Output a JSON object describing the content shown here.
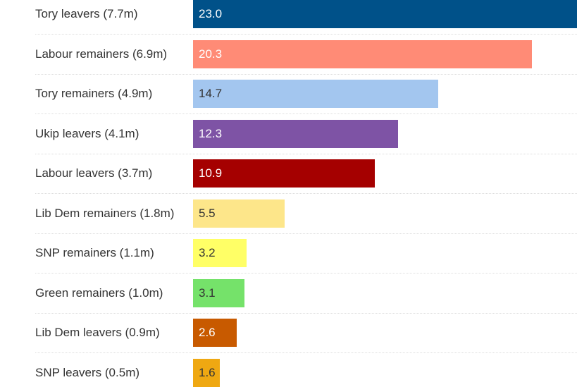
{
  "chart_data": {
    "type": "bar",
    "orientation": "horizontal",
    "categories": [
      "Tory leavers (7.7m)",
      "Labour remainers (6.9m)",
      "Tory remainers (4.9m)",
      "Ukip leavers (4.1m)",
      "Labour leavers (3.7m)",
      "Lib Dem remainers (1.8m)",
      "SNP remainers (1.1m)",
      "Green remainers (1.0m)",
      "Lib Dem leavers (0.9m)",
      "SNP leavers (0.5m)"
    ],
    "values": [
      23.0,
      20.3,
      14.7,
      12.3,
      10.9,
      5.5,
      3.2,
      3.1,
      2.6,
      1.6
    ],
    "value_labels": [
      "23.0",
      "20.3",
      "14.7",
      "12.3",
      "10.9",
      "5.5",
      "3.2",
      "3.1",
      "2.6",
      "1.6"
    ],
    "colors": [
      "#005189",
      "#ff8b76",
      "#a3c6ef",
      "#7e53a5",
      "#a50000",
      "#fde68a",
      "#ffff66",
      "#75e26a",
      "#c85a00",
      "#efa812"
    ],
    "label_colors": [
      "#ffffff",
      "#ffffff",
      "#333333",
      "#ffffff",
      "#ffffff",
      "#333333",
      "#333333",
      "#333333",
      "#ffffff",
      "#333333"
    ],
    "xlim": [
      0,
      23.0
    ],
    "title": "",
    "xlabel": "",
    "ylabel": "",
    "grid": false,
    "legend": "none"
  }
}
